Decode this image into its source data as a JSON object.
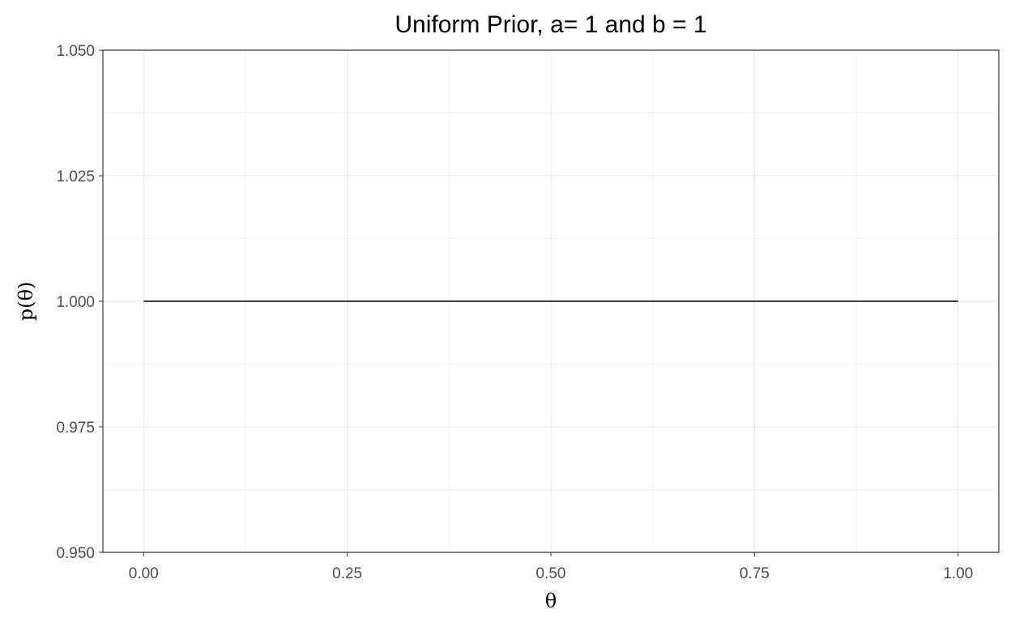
{
  "chart_data": {
    "type": "line",
    "title": "Uniform Prior, a= 1 and b = 1",
    "xlabel": "θ",
    "ylabel": "p(θ)",
    "xlim": [
      -0.05,
      1.05
    ],
    "ylim": [
      0.95,
      1.05
    ],
    "x_ticks": [
      0.0,
      0.25,
      0.5,
      0.75,
      1.0
    ],
    "x_tick_labels": [
      "0.00",
      "0.25",
      "0.50",
      "0.75",
      "1.00"
    ],
    "y_ticks": [
      0.95,
      0.975,
      1.0,
      1.025,
      1.05
    ],
    "y_tick_labels": [
      "0.950",
      "0.975",
      "1.000",
      "1.025",
      "1.050"
    ],
    "x_minor": [
      0.125,
      0.375,
      0.625,
      0.875
    ],
    "y_minor": [
      0.9625,
      0.9875,
      1.0125,
      1.0375
    ],
    "grid": true,
    "series": [
      {
        "x": [
          0.0,
          0.25,
          0.5,
          0.75,
          1.0
        ],
        "y": [
          1.0,
          1.0,
          1.0,
          1.0,
          1.0
        ],
        "color": "#000000"
      }
    ]
  },
  "colors": {
    "background": "#ffffff",
    "grid_major": "#ebebeb",
    "grid_minor": "#f4f4f4",
    "panel_border": "#333333",
    "tick_text": "#4d4d4d",
    "line": "#000000"
  }
}
